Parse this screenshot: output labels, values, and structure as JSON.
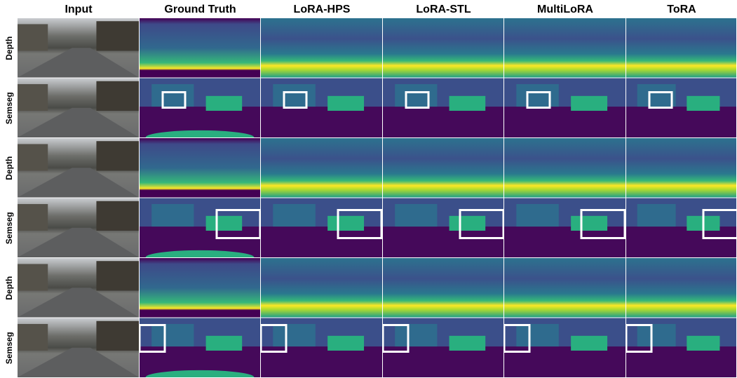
{
  "columns": [
    "Input",
    "Ground Truth",
    "LoRA-HPS",
    "LoRA-STL",
    "MultiLoRA",
    "ToRA"
  ],
  "rows": [
    "Depth",
    "Semseg",
    "Depth",
    "Semseg",
    "Depth",
    "Semseg"
  ]
}
